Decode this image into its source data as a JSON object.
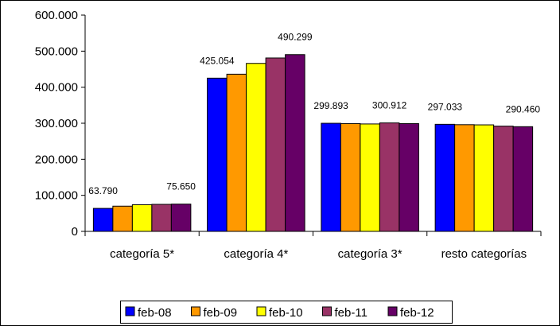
{
  "chart_data": {
    "type": "bar",
    "title": "",
    "xlabel": "",
    "ylabel": "",
    "categories": [
      "categoría 5*",
      "categoría 4*",
      "categoría 3*",
      "resto categorías"
    ],
    "series": [
      {
        "name": "feb-08",
        "color": "#0000FF",
        "values": [
          63790,
          425054,
          299893,
          297033
        ]
      },
      {
        "name": "feb-09",
        "color": "#FF9900",
        "values": [
          70000,
          436000,
          299000,
          296000
        ]
      },
      {
        "name": "feb-10",
        "color": "#FFFF00",
        "values": [
          74000,
          466000,
          298000,
          295500
        ]
      },
      {
        "name": "feb-11",
        "color": "#993366",
        "values": [
          75000,
          481000,
          300912,
          292000
        ]
      },
      {
        "name": "feb-12",
        "color": "#660066",
        "values": [
          75650,
          490299,
          299000,
          290460
        ]
      }
    ],
    "data_labels": [
      {
        "category": 0,
        "series": 0,
        "text": "63.790"
      },
      {
        "category": 0,
        "series": 4,
        "text": "75.650"
      },
      {
        "category": 1,
        "series": 0,
        "text": "425.054"
      },
      {
        "category": 1,
        "series": 4,
        "text": "490.299"
      },
      {
        "category": 2,
        "series": 0,
        "text": "299.893"
      },
      {
        "category": 2,
        "series": 3,
        "text": "300.912"
      },
      {
        "category": 3,
        "series": 0,
        "text": "297.033"
      },
      {
        "category": 3,
        "series": 4,
        "text": "290.460"
      }
    ],
    "ylim": [
      0,
      600000
    ],
    "yticks": [
      0,
      100000,
      200000,
      300000,
      400000,
      500000,
      600000
    ],
    "ytick_labels": [
      "0",
      "100.000",
      "200.000",
      "300.000",
      "400.000",
      "500.000",
      "600.000"
    ],
    "grid": false,
    "legend_position": "bottom"
  }
}
